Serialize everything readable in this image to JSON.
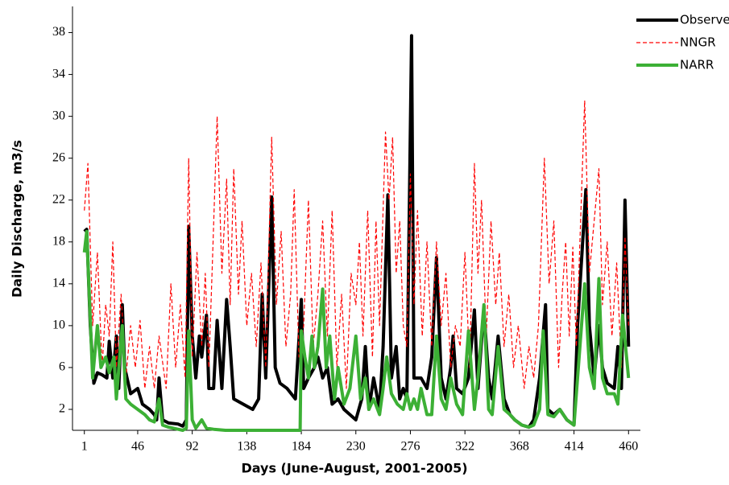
{
  "chart_data": {
    "type": "line",
    "x_label": "Days (June-August, 2001-2005)",
    "y_label": "Daily Discharge, m3/s",
    "xlim": [
      -9,
      470
    ],
    "xticks": [
      1,
      46,
      92,
      138,
      184,
      230,
      276,
      322,
      368,
      414,
      460
    ],
    "ylim": [
      0,
      40.5
    ],
    "yticks": [
      2,
      6,
      10,
      14,
      18,
      22,
      26,
      30,
      34,
      38
    ],
    "grid": false,
    "legend": "upper right",
    "series": [
      {
        "name": "Observed",
        "color": "#000000",
        "style": "solid",
        "width": 4,
        "x": [
          1,
          3,
          6,
          9,
          12,
          16,
          20,
          22,
          25,
          28,
          30,
          33,
          35,
          40,
          46,
          50,
          56,
          60,
          62,
          64,
          67,
          72,
          80,
          84,
          87,
          89,
          92,
          95,
          98,
          100,
          104,
          106,
          110,
          113,
          117,
          121,
          124,
          127,
          135,
          143,
          148,
          151,
          154,
          159,
          162,
          166,
          172,
          179,
          184,
          186,
          190,
          195,
          198,
          202,
          206,
          210,
          215,
          220,
          225,
          230,
          235,
          238,
          241,
          245,
          250,
          253,
          257,
          260,
          264,
          267,
          270,
          273,
          277,
          279,
          285,
          290,
          294,
          298,
          302,
          306,
          310,
          312,
          315,
          320,
          325,
          330,
          333,
          338,
          342,
          345,
          350,
          355,
          360,
          364,
          370,
          376,
          380,
          385,
          390,
          392,
          397,
          402,
          408,
          414,
          417,
          424,
          427,
          431,
          435,
          438,
          442,
          448,
          451,
          454,
          457,
          460
        ],
        "values": [
          19,
          19.2,
          10,
          4.5,
          5.5,
          5.3,
          5,
          8.5,
          5,
          9,
          4,
          12,
          6,
          3.5,
          4,
          2.5,
          2,
          1.5,
          1,
          5,
          1,
          0.7,
          0.6,
          0.4,
          1,
          19.5,
          9,
          5,
          9,
          7,
          11,
          4,
          4,
          10.5,
          4,
          12.5,
          8,
          3,
          2.5,
          2,
          3,
          13,
          5,
          22.3,
          6,
          4.5,
          4,
          3,
          12.5,
          4,
          5,
          6,
          7,
          5,
          6,
          2.5,
          3,
          2,
          1.5,
          1,
          3,
          8,
          2,
          5,
          2,
          8,
          22.5,
          5,
          8,
          3,
          4,
          3,
          37.7,
          5,
          5,
          4,
          7,
          16.5,
          5,
          3,
          6,
          9,
          4,
          3.5,
          5,
          11.5,
          4,
          11.5,
          5,
          3,
          9,
          3,
          1.5,
          1,
          0.5,
          0.3,
          1,
          5,
          12,
          2,
          1.5,
          2,
          1,
          0.5,
          10,
          23,
          10,
          5,
          10,
          6,
          4.5,
          4,
          8,
          4,
          22,
          8
        ]
      },
      {
        "name": "NNGR",
        "color": "#ff0000",
        "style": "dashed",
        "width": 1.2,
        "x": [
          1,
          4,
          8,
          12,
          16,
          19,
          22,
          25,
          28,
          32,
          36,
          40,
          44,
          48,
          52,
          56,
          60,
          64,
          70,
          74,
          78,
          82,
          86,
          89,
          92,
          96,
          100,
          103,
          106,
          109,
          113,
          117,
          121,
          124,
          127,
          131,
          134,
          138,
          142,
          146,
          150,
          154,
          159,
          163,
          167,
          171,
          175,
          178,
          182,
          186,
          190,
          194,
          198,
          202,
          206,
          210,
          214,
          218,
          222,
          226,
          230,
          233,
          236,
          240,
          244,
          247,
          250,
          255,
          258,
          261,
          264,
          267,
          270,
          273,
          276,
          279,
          282,
          286,
          290,
          294,
          298,
          302,
          306,
          310,
          314,
          318,
          322,
          326,
          330,
          333,
          336,
          340,
          344,
          348,
          351,
          355,
          359,
          363,
          367,
          372,
          376,
          380,
          384,
          389,
          393,
          397,
          401,
          404,
          407,
          410,
          413,
          416,
          423,
          427,
          431,
          435,
          438,
          442,
          446,
          450,
          454,
          457,
          460
        ],
        "values": [
          21,
          25.5,
          10,
          17,
          6,
          12,
          9,
          18,
          6,
          13,
          5,
          10,
          6,
          10.5,
          4,
          8,
          4,
          9,
          4,
          14,
          6,
          12,
          5,
          26,
          7,
          17,
          8,
          15,
          6,
          16,
          30,
          15,
          24,
          12,
          25,
          13,
          20,
          10,
          15,
          8,
          16,
          6,
          28,
          12,
          19,
          8,
          13,
          23,
          7,
          10,
          22,
          8,
          13,
          20,
          9,
          21,
          6,
          13,
          4,
          15,
          12,
          18,
          9,
          21,
          7,
          20,
          10,
          28.5,
          22,
          28,
          15,
          20,
          10,
          8,
          24.5,
          12,
          21,
          9,
          18,
          8,
          18,
          10,
          15,
          6,
          10,
          8,
          17,
          6,
          25.5,
          15,
          22,
          9,
          20,
          12,
          17,
          8,
          13,
          6,
          10,
          4,
          8,
          5,
          10,
          26,
          14,
          20,
          6,
          13,
          18,
          9,
          17.5,
          8,
          31.5,
          15,
          20,
          25,
          12,
          18,
          9,
          16,
          6,
          18.5,
          10
        ]
      },
      {
        "name": "NARR",
        "color": "#3cb035",
        "style": "solid",
        "width": 4,
        "x": [
          1,
          3,
          8,
          12,
          15,
          19,
          22,
          26,
          28,
          33,
          36,
          40,
          46,
          52,
          56,
          60,
          64,
          67,
          72,
          80,
          84,
          87,
          89,
          92,
          95,
          100,
          104,
          110,
          120,
          140,
          160,
          183,
          184,
          187,
          190,
          193,
          195,
          198,
          202,
          205,
          208,
          212,
          215,
          220,
          225,
          230,
          234,
          238,
          241,
          245,
          250,
          253,
          256,
          260,
          265,
          270,
          273,
          276,
          279,
          282,
          285,
          290,
          294,
          298,
          302,
          306,
          310,
          315,
          320,
          325,
          330,
          333,
          338,
          342,
          345,
          350,
          355,
          360,
          364,
          370,
          376,
          380,
          385,
          388,
          392,
          397,
          402,
          408,
          414,
          417,
          423,
          427,
          431,
          435,
          438,
          442,
          448,
          451,
          455,
          460
        ],
        "values": [
          17,
          19,
          5,
          10,
          6,
          7,
          5.5,
          7,
          3,
          10,
          3,
          2.5,
          2,
          1.5,
          1,
          0.8,
          3,
          0.5,
          0.3,
          0.1,
          0,
          0.2,
          9.5,
          1,
          0.2,
          1,
          0.2,
          0.1,
          0,
          0,
          0,
          0,
          9.5,
          7,
          5,
          9,
          6,
          8,
          13.5,
          6,
          9,
          3,
          6,
          2.5,
          4,
          9,
          3,
          5,
          2,
          3,
          1.5,
          4,
          7,
          3.5,
          2.5,
          2,
          3.5,
          2,
          3,
          2,
          4,
          1.5,
          1.5,
          9,
          3,
          2,
          5,
          2.5,
          1.5,
          9.5,
          2,
          5,
          12,
          2,
          1.5,
          8,
          2,
          1.5,
          1,
          0.5,
          0.3,
          0.5,
          2,
          9.5,
          1.5,
          1.3,
          2,
          1,
          0.5,
          5,
          14,
          6,
          4,
          14.5,
          5,
          3.5,
          3.5,
          2.5,
          11,
          5
        ]
      }
    ]
  }
}
